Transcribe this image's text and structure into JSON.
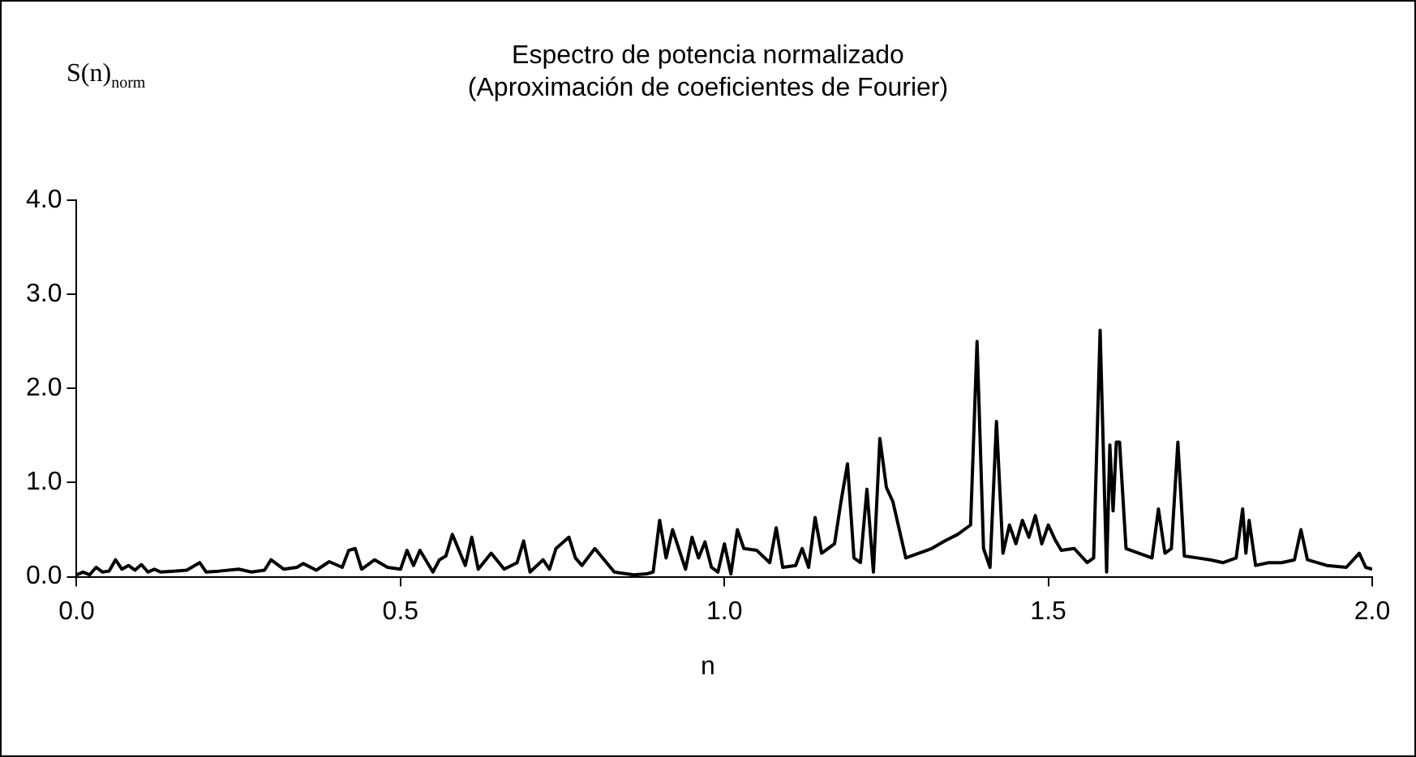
{
  "chart_data": {
    "type": "line",
    "title": "Espectro de potencia normalizado",
    "subtitle": "(Aproximación de coeficientes de Fourier)",
    "xlabel": "n",
    "ylabel": "S(n)$_{norm}$",
    "xlim": [
      0,
      2
    ],
    "xticks": [
      {
        "value": 0,
        "label": "0.0"
      },
      0.5,
      {
        "value": 1,
        "label": "1.0"
      },
      1.5,
      {
        "value": 2,
        "label": "2.0"
      }
    ],
    "ylim": [
      0,
      4
    ],
    "yticks": [
      {
        "value": 0,
        "label": "0.0"
      },
      {
        "value": 1,
        "label": "1.0"
      },
      {
        "value": 2,
        "label": "2.0"
      },
      {
        "value": 3,
        "label": "3.0"
      },
      {
        "value": 4,
        "label": "4.0"
      }
    ],
    "grid": false,
    "marker": "none",
    "line_style": "solid",
    "series": [
      {
        "color": "#000000",
        "x": [
          0.0,
          0.01,
          0.02,
          0.03,
          0.04,
          0.05,
          0.06,
          0.07,
          0.08,
          0.09,
          0.1,
          0.11,
          0.12,
          0.13,
          0.15,
          0.17,
          0.19,
          0.2,
          0.22,
          0.25,
          0.27,
          0.29,
          0.3,
          0.32,
          0.34,
          0.35,
          0.37,
          0.39,
          0.41,
          0.42,
          0.43,
          0.44,
          0.46,
          0.48,
          0.5,
          0.51,
          0.52,
          0.53,
          0.55,
          0.56,
          0.57,
          0.58,
          0.6,
          0.61,
          0.62,
          0.64,
          0.66,
          0.68,
          0.69,
          0.7,
          0.72,
          0.73,
          0.74,
          0.76,
          0.77,
          0.78,
          0.8,
          0.83,
          0.86,
          0.88,
          0.89,
          0.9,
          0.91,
          0.92,
          0.94,
          0.95,
          0.96,
          0.97,
          0.98,
          0.99,
          1.0,
          1.01,
          1.02,
          1.03,
          1.05,
          1.07,
          1.08,
          1.09,
          1.11,
          1.12,
          1.13,
          1.14,
          1.15,
          1.17,
          1.18,
          1.19,
          1.2,
          1.21,
          1.22,
          1.23,
          1.24,
          1.25,
          1.26,
          1.28,
          1.3,
          1.32,
          1.34,
          1.36,
          1.38,
          1.39,
          1.4,
          1.41,
          1.42,
          1.43,
          1.44,
          1.45,
          1.46,
          1.47,
          1.48,
          1.49,
          1.5,
          1.51,
          1.52,
          1.54,
          1.56,
          1.57,
          1.58,
          1.59,
          1.595,
          1.6,
          1.605,
          1.61,
          1.62,
          1.64,
          1.66,
          1.67,
          1.68,
          1.69,
          1.7,
          1.71,
          1.73,
          1.75,
          1.77,
          1.79,
          1.8,
          1.805,
          1.81,
          1.82,
          1.84,
          1.86,
          1.88,
          1.89,
          1.9,
          1.93,
          1.96,
          1.98,
          1.99,
          2.0
        ],
        "values": [
          0.02,
          0.05,
          0.02,
          0.1,
          0.05,
          0.06,
          0.18,
          0.08,
          0.12,
          0.07,
          0.13,
          0.05,
          0.08,
          0.05,
          0.06,
          0.07,
          0.15,
          0.05,
          0.06,
          0.08,
          0.05,
          0.07,
          0.18,
          0.08,
          0.1,
          0.14,
          0.07,
          0.16,
          0.1,
          0.28,
          0.3,
          0.08,
          0.18,
          0.1,
          0.08,
          0.28,
          0.12,
          0.28,
          0.05,
          0.18,
          0.22,
          0.45,
          0.12,
          0.42,
          0.08,
          0.25,
          0.08,
          0.15,
          0.38,
          0.05,
          0.18,
          0.08,
          0.3,
          0.42,
          0.2,
          0.12,
          0.3,
          0.05,
          0.02,
          0.03,
          0.05,
          0.6,
          0.2,
          0.5,
          0.08,
          0.42,
          0.2,
          0.37,
          0.1,
          0.05,
          0.35,
          0.03,
          0.5,
          0.3,
          0.28,
          0.15,
          0.52,
          0.1,
          0.12,
          0.3,
          0.1,
          0.63,
          0.25,
          0.35,
          0.8,
          1.2,
          0.2,
          0.15,
          0.93,
          0.05,
          1.47,
          0.95,
          0.8,
          0.2,
          0.25,
          0.3,
          0.38,
          0.45,
          0.55,
          2.5,
          0.3,
          0.1,
          1.65,
          0.25,
          0.55,
          0.35,
          0.6,
          0.42,
          0.65,
          0.35,
          0.55,
          0.4,
          0.28,
          0.3,
          0.15,
          0.2,
          2.62,
          0.05,
          1.4,
          0.7,
          1.43,
          1.43,
          0.3,
          0.25,
          0.2,
          0.72,
          0.25,
          0.3,
          1.43,
          0.22,
          0.2,
          0.18,
          0.15,
          0.2,
          0.72,
          0.25,
          0.6,
          0.12,
          0.15,
          0.15,
          0.18,
          0.5,
          0.18,
          0.12,
          0.1,
          0.25,
          0.1,
          0.08
        ]
      }
    ]
  }
}
